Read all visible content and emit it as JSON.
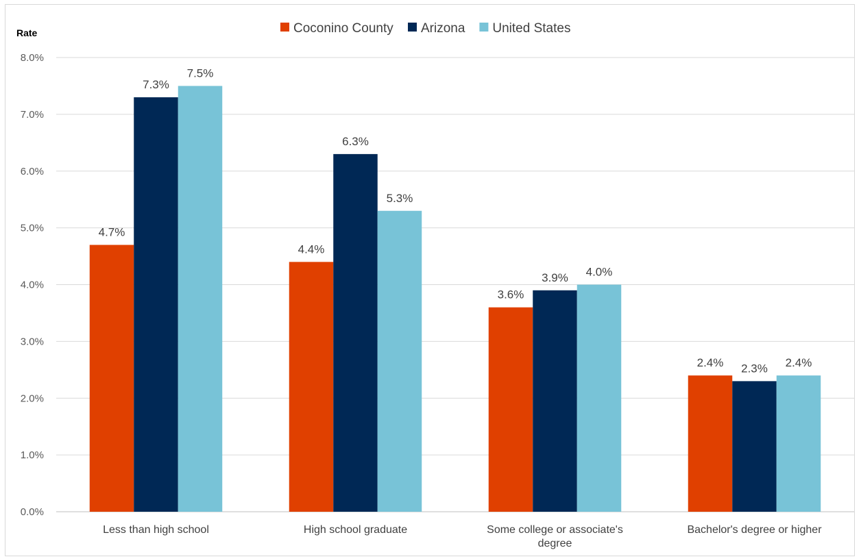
{
  "chart_data": {
    "type": "bar",
    "ylabel": "Rate",
    "ylim": [
      0,
      8
    ],
    "yticks": [
      "0.0%",
      "1.0%",
      "2.0%",
      "3.0%",
      "4.0%",
      "5.0%",
      "6.0%",
      "7.0%",
      "8.0%"
    ],
    "grid": true,
    "legend_position": "top",
    "categories": [
      [
        "Less than high school"
      ],
      [
        "High school graduate"
      ],
      [
        "Some college or associate's",
        "degree"
      ],
      [
        "Bachelor's degree or higher"
      ]
    ],
    "series": [
      {
        "name": "Coconino County",
        "color": "#E04000",
        "values": [
          4.7,
          4.4,
          3.6,
          2.4
        ],
        "labels": [
          "4.7%",
          "4.4%",
          "3.6%",
          "2.4%"
        ]
      },
      {
        "name": "Arizona",
        "color": "#002855",
        "values": [
          7.3,
          6.3,
          3.9,
          2.3
        ],
        "labels": [
          "7.3%",
          "6.3%",
          "3.9%",
          "2.3%"
        ]
      },
      {
        "name": "United States",
        "color": "#78C3D7",
        "values": [
          7.5,
          5.3,
          4.0,
          2.4
        ],
        "labels": [
          "7.5%",
          "5.3%",
          "4.0%",
          "2.4%"
        ]
      }
    ]
  }
}
